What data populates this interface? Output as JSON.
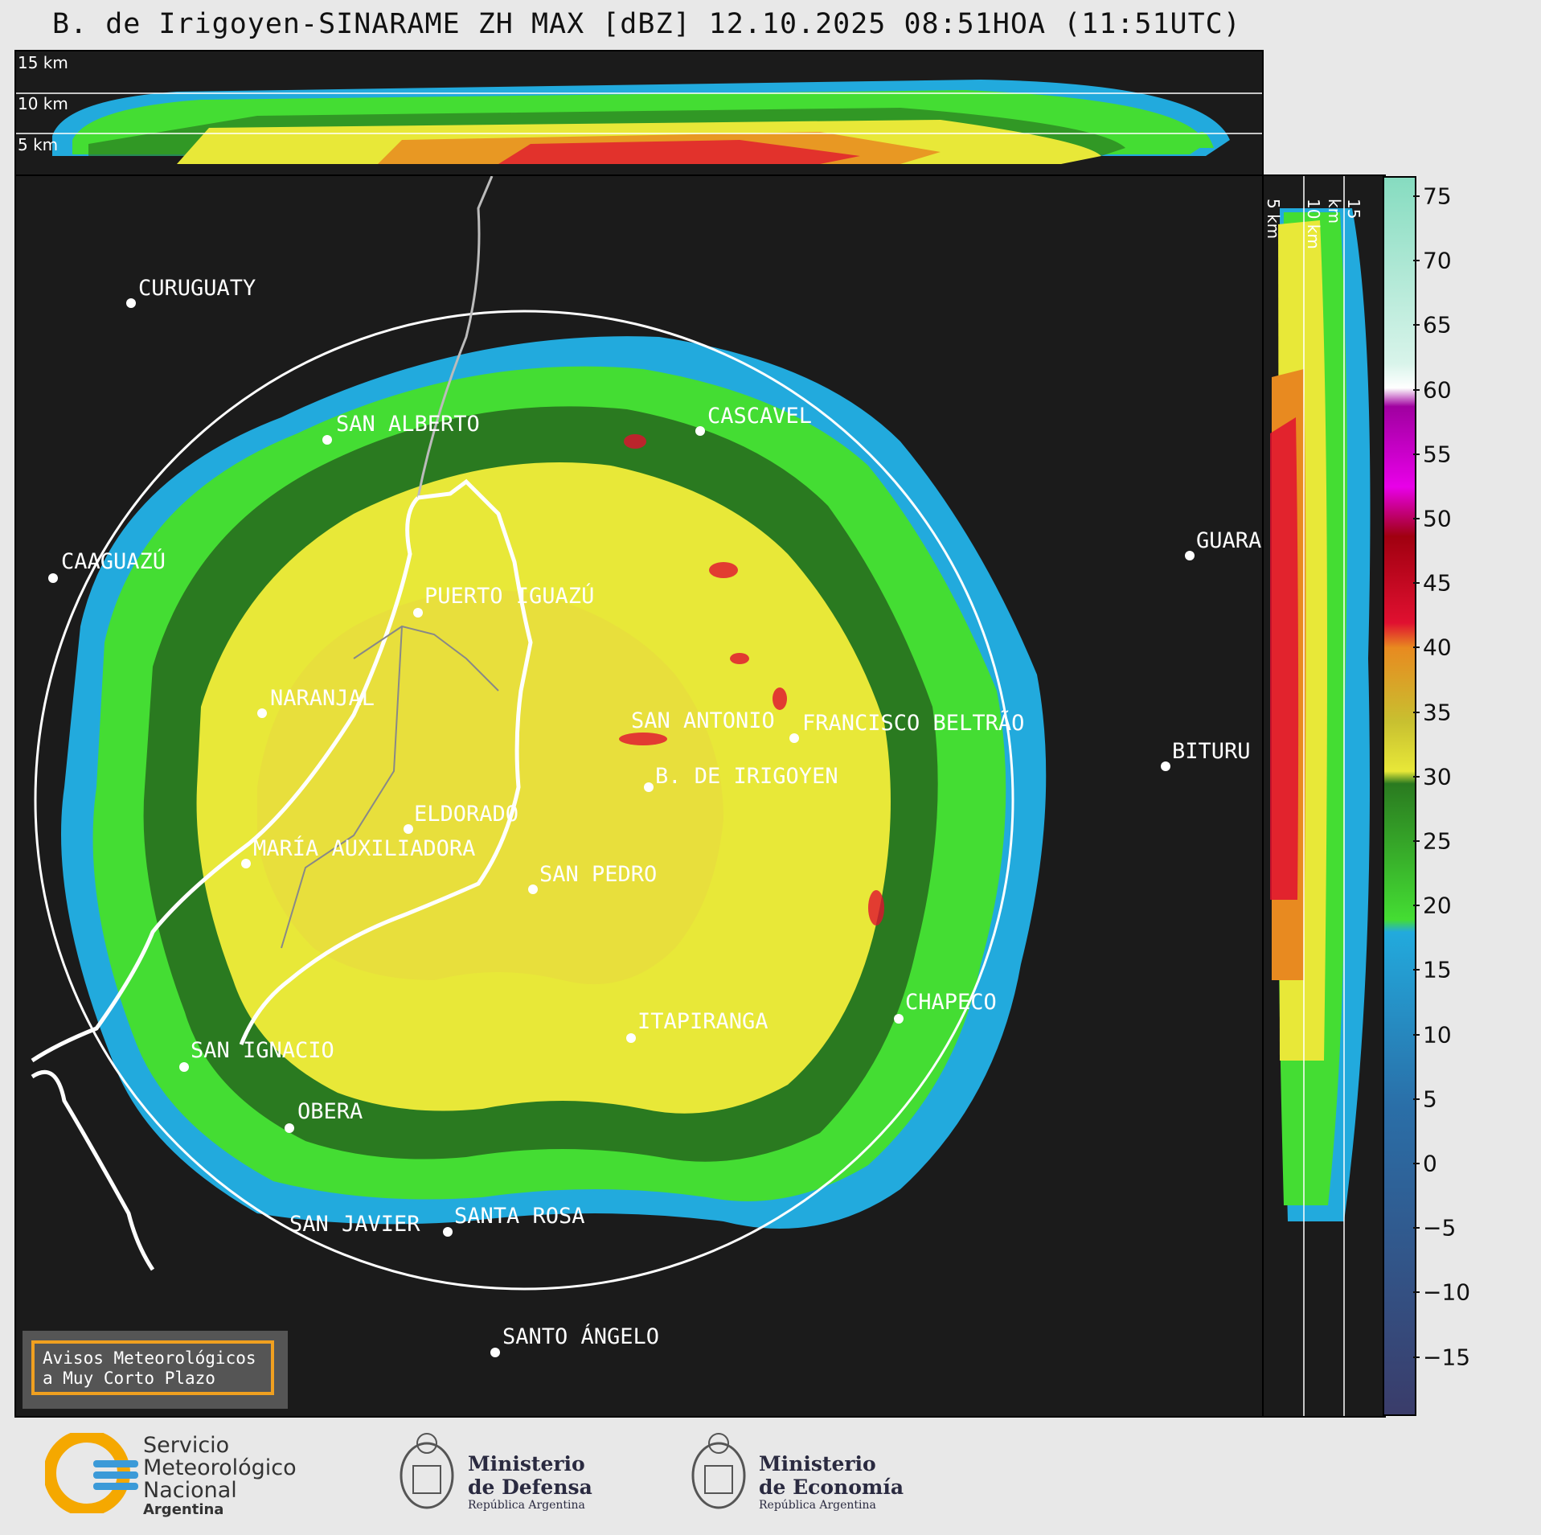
{
  "title": "B. de Irigoyen-SINARAME ZH MAX [dBZ] 12.10.2025 08:51HOA (11:51UTC)",
  "top_panel": {
    "height_labels": [
      "15 km",
      "10 km",
      "5 km"
    ]
  },
  "side_panel": {
    "height_labels": [
      "5 km",
      "10 km",
      "15 km"
    ]
  },
  "colorbar": {
    "ticks": [
      "75",
      "70",
      "65",
      "60",
      "55",
      "50",
      "45",
      "40",
      "35",
      "30",
      "25",
      "20",
      "15",
      "10",
      "5",
      "0",
      "−5",
      "−10",
      "−15"
    ],
    "colors": {
      "teal": "#86dcc0",
      "white": "#ffffff",
      "magenta": "#e800e8",
      "purple": "#a000a0",
      "darkred": "#a00010",
      "red": "#e01030",
      "orange": "#e88a20",
      "yellow": "#e8e838",
      "darkgreen": "#2a7a20",
      "green": "#44dd33",
      "cyan": "#22aadd",
      "blue": "#2a6fa8",
      "navy": "#3a3c6a"
    }
  },
  "map": {
    "cities": [
      {
        "name": "CURUGUATY"
      },
      {
        "name": "SAN ALBERTO"
      },
      {
        "name": "CASCAVEL"
      },
      {
        "name": "CAAGUAZÚ"
      },
      {
        "name": "PUERTO IGUAZÚ"
      },
      {
        "name": "GUARA"
      },
      {
        "name": "NARANJAL"
      },
      {
        "name": "SAN ANTONIO"
      },
      {
        "name": "FRANCISCO BELTRÃO"
      },
      {
        "name": "B. DE IRIGOYEN"
      },
      {
        "name": "BITURU"
      },
      {
        "name": "ELDORADO"
      },
      {
        "name": "MARÍA AUXILIADORA"
      },
      {
        "name": "SAN PEDRO"
      },
      {
        "name": "CHAPECO"
      },
      {
        "name": "ITAPIRANGA"
      },
      {
        "name": "SAN IGNACIO"
      },
      {
        "name": "OBERA"
      },
      {
        "name": "SAN JAVIER"
      },
      {
        "name": "SANTA ROSA"
      },
      {
        "name": "SANTO ÁNGELO"
      }
    ]
  },
  "aviso": {
    "line1": "Avisos Meteorológicos",
    "line2": "a Muy Corto Plazo"
  },
  "logos": {
    "smn": {
      "line1": "Servicio",
      "line2": "Meteorológico",
      "line3": "Nacional",
      "line4": "Argentina"
    },
    "defensa": {
      "line1": "Ministerio",
      "line2": "de Defensa",
      "line3": "República Argentina"
    },
    "economia": {
      "line1": "Ministerio",
      "line2": "de Economía",
      "line3": "República Argentina"
    }
  }
}
